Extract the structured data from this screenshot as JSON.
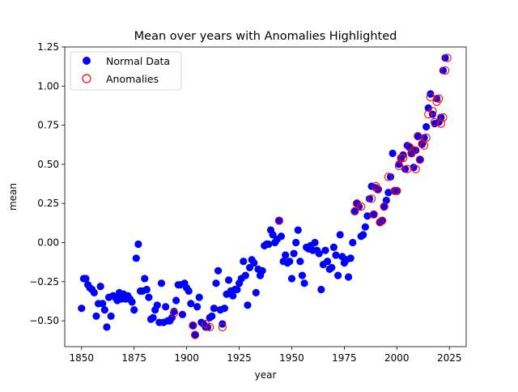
{
  "chart_data": {
    "type": "scatter",
    "title": "Mean over years with Anomalies Highlighted",
    "xlabel": "year",
    "ylabel": "mean",
    "xlim": [
      1842,
      2033
    ],
    "ylim": [
      -0.665,
      1.25
    ],
    "xticks": [
      1850,
      1875,
      1900,
      1925,
      1950,
      1975,
      2000,
      2025
    ],
    "yticks": [
      -0.5,
      -0.25,
      0.0,
      0.25,
      0.5,
      0.75,
      1.0,
      1.25
    ],
    "xtick_labels": [
      "1850",
      "1875",
      "1900",
      "1925",
      "1950",
      "1975",
      "2000",
      "2025"
    ],
    "ytick_labels": [
      "−0.50",
      "−0.25",
      "0.00",
      "0.25",
      "0.50",
      "0.75",
      "1.00",
      "1.25"
    ],
    "grid": false,
    "legend": {
      "position": "top-left",
      "entries": [
        {
          "label": "Normal Data",
          "color": "#0000ff",
          "marker": "filled-circle"
        },
        {
          "label": "Anomalies",
          "color": "#ff0000",
          "marker": "hollow-circle"
        }
      ]
    },
    "series": [
      {
        "name": "Normal Data",
        "color": "#0000ff",
        "x": [
          1850,
          1851,
          1852,
          1853,
          1854,
          1855,
          1856,
          1857,
          1858,
          1859,
          1860,
          1861,
          1862,
          1863,
          1864,
          1865,
          1866,
          1867,
          1868,
          1869,
          1870,
          1871,
          1872,
          1873,
          1874,
          1875,
          1876,
          1877,
          1878,
          1879,
          1880,
          1881,
          1882,
          1883,
          1884,
          1885,
          1886,
          1887,
          1888,
          1889,
          1890,
          1891,
          1892,
          1893,
          1894,
          1895,
          1896,
          1897,
          1898,
          1899,
          1900,
          1901,
          1902,
          1903,
          1904,
          1905,
          1906,
          1907,
          1908,
          1909,
          1910,
          1911,
          1912,
          1913,
          1914,
          1915,
          1916,
          1917,
          1918,
          1919,
          1920,
          1921,
          1922,
          1923,
          1924,
          1925,
          1926,
          1927,
          1928,
          1929,
          1930,
          1931,
          1932,
          1933,
          1934,
          1935,
          1936,
          1937,
          1938,
          1939,
          1940,
          1941,
          1942,
          1943,
          1944,
          1945,
          1946,
          1947,
          1948,
          1949,
          1950,
          1951,
          1952,
          1953,
          1954,
          1955,
          1956,
          1957,
          1958,
          1959,
          1960,
          1961,
          1962,
          1963,
          1964,
          1965,
          1966,
          1967,
          1968,
          1969,
          1970,
          1971,
          1972,
          1973,
          1974,
          1975,
          1976,
          1977,
          1978,
          1979,
          1980,
          1981,
          1982,
          1983,
          1984,
          1985,
          1986,
          1987,
          1988,
          1989,
          1990,
          1991,
          1992,
          1993,
          1994,
          1995,
          1996,
          1997,
          1998,
          1999,
          2000,
          2001,
          2002,
          2003,
          2004,
          2005,
          2006,
          2007,
          2008,
          2009,
          2010,
          2011,
          2012,
          2013,
          2014,
          2015,
          2016,
          2017,
          2018,
          2019,
          2020,
          2021,
          2022,
          2023
        ],
        "y": [
          -0.42,
          -0.23,
          -0.23,
          -0.27,
          -0.29,
          -0.3,
          -0.32,
          -0.47,
          -0.39,
          -0.28,
          -0.39,
          -0.43,
          -0.54,
          -0.35,
          -0.47,
          -0.34,
          -0.35,
          -0.37,
          -0.32,
          -0.36,
          -0.33,
          -0.36,
          -0.34,
          -0.36,
          -0.38,
          -0.43,
          -0.1,
          -0.01,
          -0.31,
          -0.31,
          -0.23,
          -0.3,
          -0.35,
          -0.49,
          -0.48,
          -0.43,
          -0.4,
          -0.51,
          -0.26,
          -0.51,
          -0.41,
          -0.5,
          -0.5,
          -0.48,
          -0.44,
          -0.37,
          -0.27,
          -0.27,
          -0.46,
          -0.26,
          -0.29,
          -0.31,
          -0.39,
          -0.53,
          -0.59,
          -0.41,
          -0.35,
          -0.51,
          -0.52,
          -0.54,
          -0.54,
          -0.48,
          -0.47,
          -0.42,
          -0.26,
          -0.18,
          -0.43,
          -0.52,
          -0.42,
          -0.33,
          -0.24,
          -0.31,
          -0.34,
          -0.3,
          -0.3,
          -0.26,
          -0.23,
          -0.12,
          -0.21,
          -0.4,
          -0.16,
          -0.11,
          -0.13,
          -0.32,
          -0.17,
          -0.21,
          -0.18,
          -0.02,
          -0.01,
          -0.01,
          0.08,
          0.05,
          0.0,
          0.02,
          0.14,
          0.04,
          -0.12,
          -0.08,
          -0.13,
          -0.12,
          -0.23,
          -0.07,
          0.0,
          0.08,
          -0.12,
          -0.21,
          -0.26,
          -0.03,
          -0.04,
          -0.02,
          -0.05,
          0.0,
          -0.05,
          -0.07,
          -0.3,
          -0.14,
          -0.05,
          -0.12,
          -0.17,
          -0.16,
          -0.03,
          -0.08,
          -0.21,
          0.05,
          -0.09,
          -0.13,
          -0.11,
          -0.22,
          -0.1,
          0.0,
          0.2,
          0.25,
          0.23,
          0.04,
          0.05,
          0.1,
          0.17,
          0.28,
          0.36,
          0.18,
          0.35,
          0.34,
          0.13,
          0.14,
          0.23,
          0.27,
          0.32,
          0.42,
          0.57,
          0.33,
          0.33,
          0.5,
          0.54,
          0.56,
          0.47,
          0.62,
          0.61,
          0.57,
          0.48,
          0.59,
          0.68,
          0.53,
          0.63,
          0.67,
          0.74,
          0.86,
          0.95,
          0.82,
          0.76,
          0.92,
          0.77,
          0.8,
          1.1,
          1.18
        ]
      },
      {
        "name": "Anomalies",
        "color": "#ff0000",
        "x": [
          1894,
          1903,
          1904,
          1909,
          1911,
          1917,
          1944,
          1980,
          1981,
          1983,
          1988,
          1989,
          1990,
          1991,
          1992,
          1993,
          1994,
          1996,
          1999,
          2000,
          2001,
          2002,
          2003,
          2005,
          2006,
          2007,
          2008,
          2009,
          2010,
          2011,
          2012,
          2013,
          2014,
          2015,
          2016,
          2017,
          2018,
          2019,
          2020,
          2021,
          2022,
          2023,
          2024
        ],
        "y": [
          -0.45,
          -0.53,
          -0.59,
          -0.52,
          -0.54,
          -0.54,
          0.14,
          0.2,
          0.25,
          0.23,
          0.28,
          0.18,
          0.36,
          0.34,
          0.13,
          0.14,
          0.23,
          0.42,
          0.33,
          0.33,
          0.49,
          0.54,
          0.54,
          0.47,
          0.61,
          0.57,
          0.59,
          0.47,
          0.68,
          0.53,
          0.63,
          0.62,
          0.67,
          0.82,
          0.93,
          0.84,
          0.77,
          0.9,
          0.92,
          0.76,
          0.8,
          1.1,
          1.18
        ]
      }
    ]
  }
}
